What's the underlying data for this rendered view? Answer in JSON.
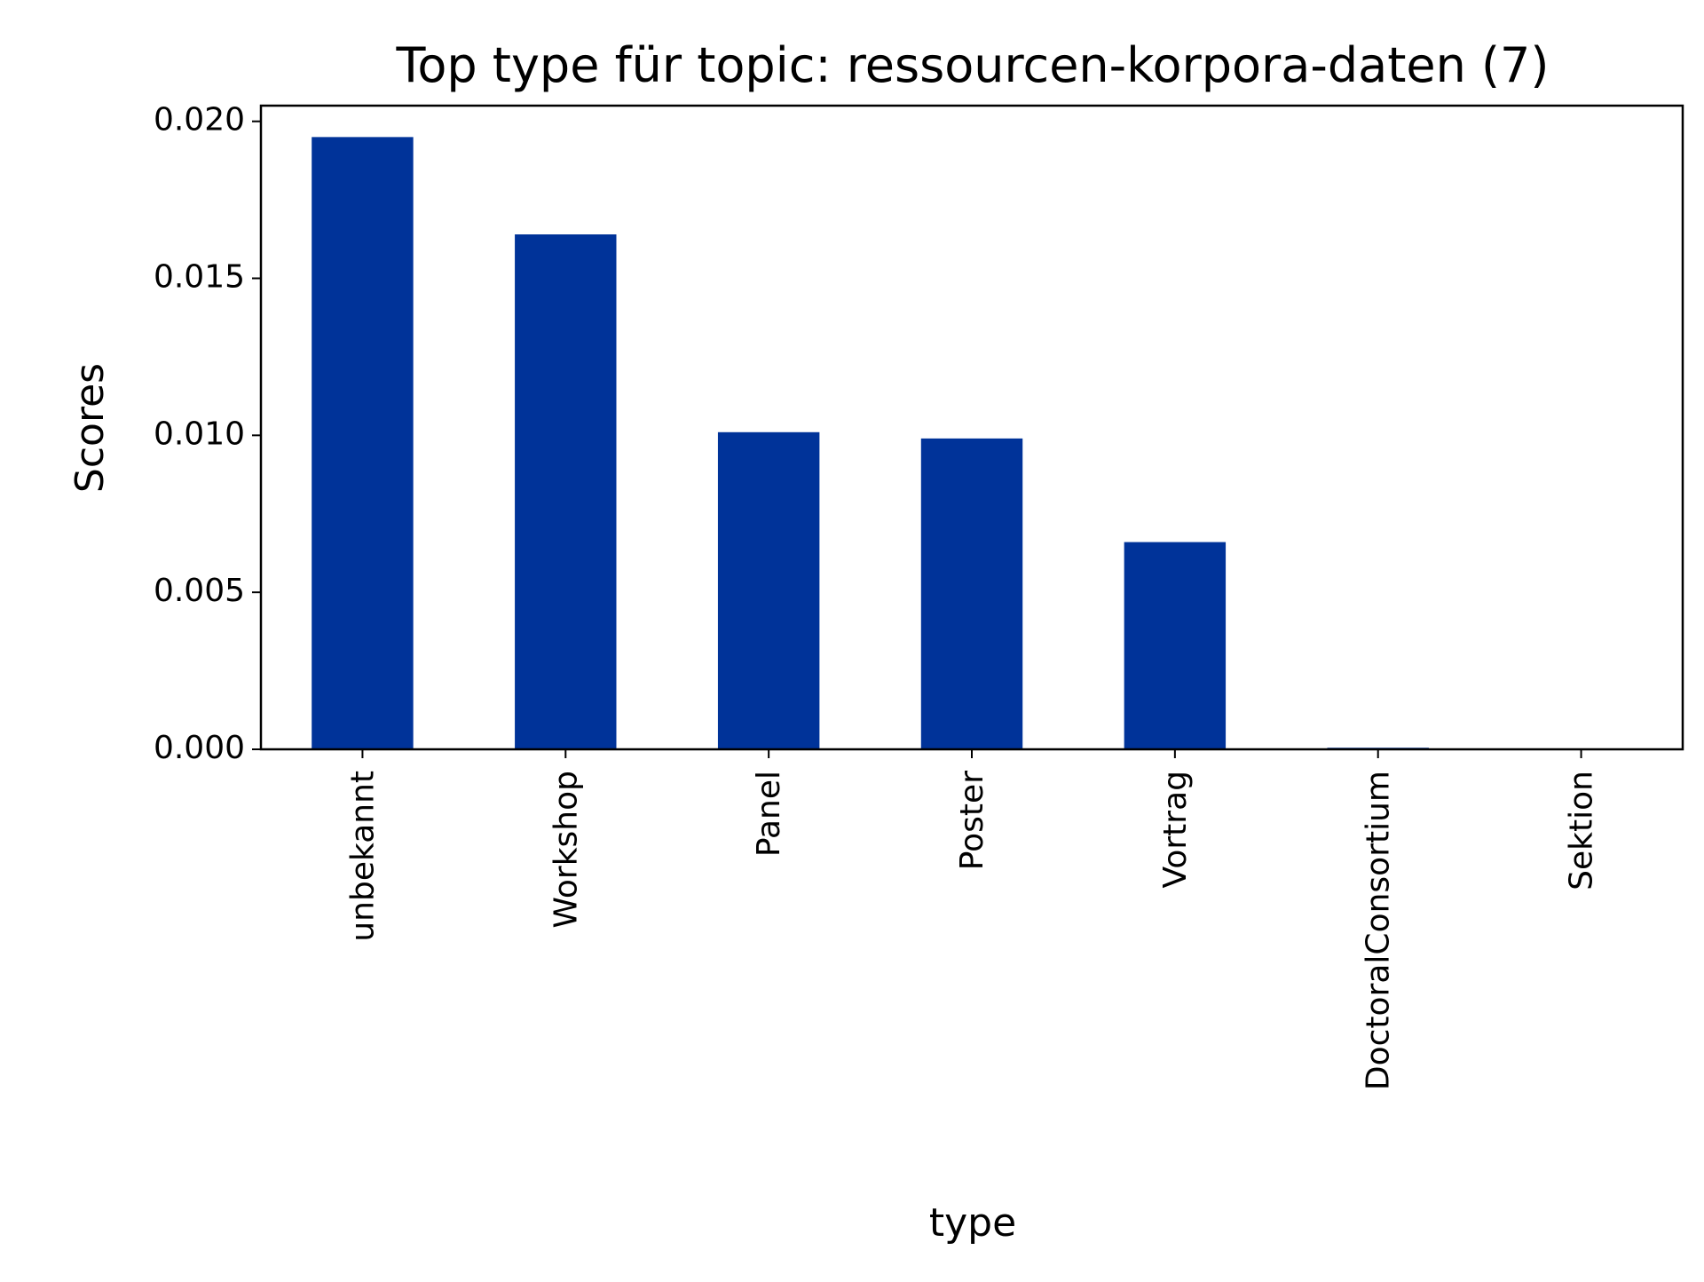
{
  "chart_data": {
    "type": "bar",
    "title": "Top type für topic: ressourcen-korpora-daten (7)",
    "xlabel": "type",
    "ylabel": "Scores",
    "categories": [
      "unbekannt",
      "Workshop",
      "Panel",
      "Poster",
      "Vortrag",
      "DoctoralConsortium",
      "Sektion"
    ],
    "values": [
      0.0195,
      0.0164,
      0.0101,
      0.0099,
      0.0066,
      5e-05,
      0.0
    ],
    "ylim": [
      0,
      0.0205
    ],
    "yticks": [
      0.0,
      0.005,
      0.01,
      0.015,
      0.02
    ],
    "ytick_labels": [
      "0.000",
      "0.005",
      "0.010",
      "0.015",
      "0.020"
    ],
    "bar_color": "#003399",
    "grid": false,
    "legend": false
  }
}
